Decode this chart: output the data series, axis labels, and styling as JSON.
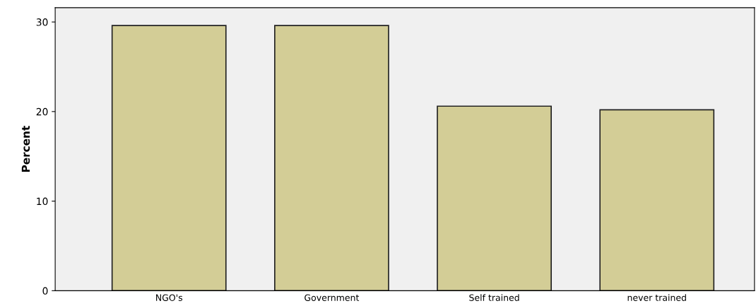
{
  "chart_data": {
    "type": "bar",
    "ylabel": "Percent",
    "categories": [
      "NGO's",
      "Government",
      "Self trained",
      "never trained"
    ],
    "values": [
      29.6,
      29.6,
      20.6,
      20.2
    ],
    "color": "#d3cd96",
    "ylim": [
      0,
      31.6
    ],
    "yticks": [
      0,
      10,
      20,
      30
    ],
    "grid": false
  }
}
